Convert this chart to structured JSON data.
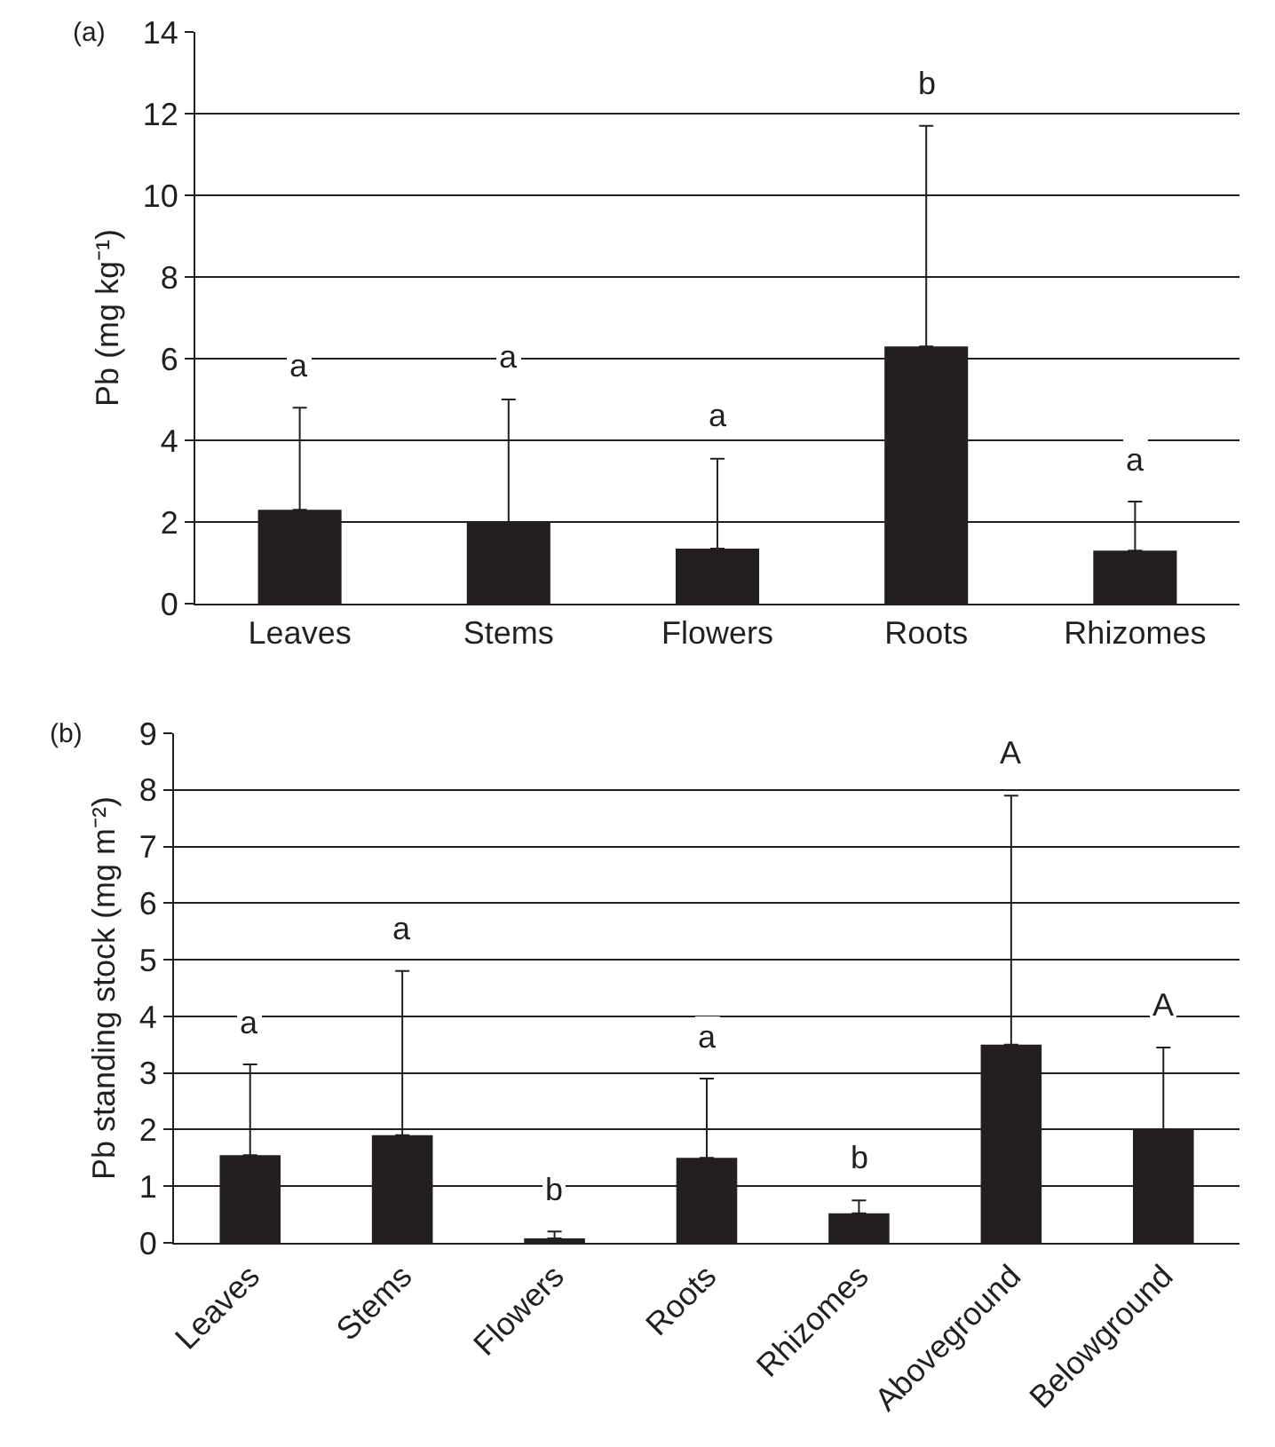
{
  "chart_data": [
    {
      "type": "bar",
      "ylabel": "Pb (mg kg⁻¹)",
      "categories": [
        "Leaves",
        "Stems",
        "Flowers",
        "Roots",
        "Rhizomes"
      ],
      "values": [
        2.3,
        2.0,
        1.35,
        6.3,
        1.3
      ],
      "errors": [
        [
          2.3,
          4.8
        ],
        [
          2.0,
          5.0
        ],
        [
          1.35,
          3.55
        ],
        [
          6.3,
          11.7
        ],
        [
          1.3,
          2.5
        ]
      ],
      "color": "#231f20",
      "ylim": [
        0,
        14
      ],
      "yticks": [
        0,
        2,
        4,
        6,
        8,
        10,
        12,
        14
      ],
      "grid": "y",
      "annotations": [
        "(a)",
        {
          "text": "a",
          "x": "Leaves",
          "y": 4.8
        },
        {
          "text": "a",
          "x": "Stems",
          "y": 5.0
        },
        {
          "text": "a",
          "x": "Flowers",
          "y": 3.55
        },
        {
          "text": "b",
          "x": "Roots",
          "y": 11.7
        },
        {
          "text": "a",
          "x": "Rhizomes",
          "y": 2.5
        }
      ]
    },
    {
      "type": "bar",
      "ylabel": "Pb standing stock (mg m⁻²)",
      "categories": [
        "Leaves",
        "Stems",
        "Flowers",
        "Roots",
        "Rhizomes",
        "Aboveground",
        "Belowground"
      ],
      "values": [
        1.55,
        1.9,
        0.08,
        1.5,
        0.52,
        3.5,
        2.0
      ],
      "errors": [
        [
          1.55,
          3.15
        ],
        [
          1.9,
          4.8
        ],
        [
          0.08,
          0.2
        ],
        [
          1.5,
          2.9
        ],
        [
          0.52,
          0.75
        ],
        [
          3.5,
          7.9
        ],
        [
          2.0,
          3.45
        ]
      ],
      "color": "#231f20",
      "ylim": [
        0,
        9
      ],
      "yticks": [
        0,
        1,
        2,
        3,
        4,
        5,
        6,
        7,
        8,
        9
      ],
      "grid": "y",
      "annotations": [
        "(b)",
        {
          "text": "a",
          "x": "Leaves",
          "y": 3.15
        },
        {
          "text": "a",
          "x": "Stems",
          "y": 4.8
        },
        {
          "text": "b",
          "x": "Flowers",
          "y": 0.2
        },
        {
          "text": "a",
          "x": "Roots",
          "y": 2.9
        },
        {
          "text": "b",
          "x": "Rhizomes",
          "y": 0.75
        },
        {
          "text": "A",
          "x": "Aboveground",
          "y": 7.9
        },
        {
          "text": "A",
          "x": "Belowground",
          "y": 3.45
        }
      ]
    }
  ]
}
